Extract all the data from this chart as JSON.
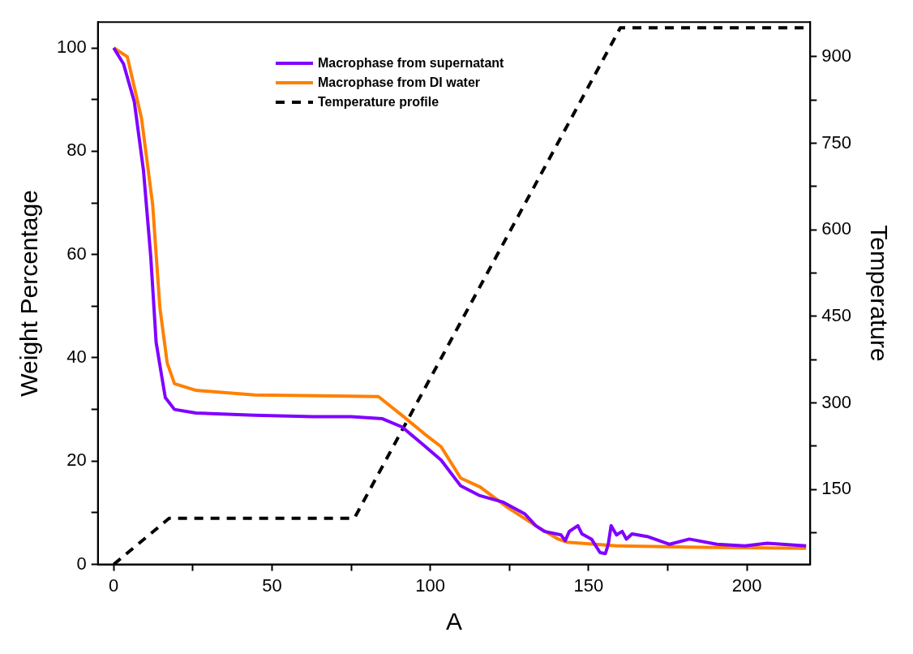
{
  "chart_data": {
    "type": "line",
    "xlabel": "A",
    "ylabel": "Weight Percentage",
    "y2label": "Temperature",
    "xlim": [
      -5,
      220
    ],
    "xticks": [
      0,
      {
        "value": 25,
        "label": null
      },
      50,
      {
        "value": 75,
        "label": null
      },
      100,
      {
        "value": 125,
        "label": null
      },
      150,
      {
        "value": 175,
        "label": null
      },
      200
    ],
    "ylim": [
      0,
      105
    ],
    "yticks": [
      0,
      {
        "value": 10,
        "label": null
      },
      20,
      {
        "value": 30,
        "label": null
      },
      40,
      {
        "value": 50,
        "label": null
      },
      60,
      {
        "value": 70,
        "label": null
      },
      80,
      {
        "value": 90,
        "label": null
      },
      100
    ],
    "y2lim": [
      20,
      960
    ],
    "y2ticks": [
      {
        "value": 75,
        "label": null
      },
      150,
      {
        "value": 225,
        "label": null
      },
      300,
      {
        "value": 375,
        "label": null
      },
      450,
      {
        "value": 525,
        "label": null
      },
      600,
      {
        "value": 675,
        "label": null
      },
      750,
      {
        "value": 825,
        "label": null
      },
      900
    ],
    "legend": "top",
    "series": [
      {
        "name": "Macrophase from supernatant",
        "color": "#8000ff",
        "x": [
          0,
          3.1,
          6.5,
          9.4,
          11.7,
          13.4,
          15.2,
          16.3,
          19.2,
          26,
          44.5,
          62.9,
          75,
          84.9,
          91.1,
          98.1,
          103.4,
          109.6,
          115.7,
          122.8,
          129.8,
          133.3,
          136,
          141.3,
          142.6,
          143.9,
          146.6,
          147.9,
          150.9,
          153.6,
          155.3,
          156.2,
          157.1,
          158.8,
          160.6,
          161.9,
          163.7,
          168.5,
          175.6,
          181.8,
          190.5,
          199.4,
          206.4,
          218.7
        ],
        "values": [
          100,
          96.9,
          89.6,
          76.3,
          59.6,
          43,
          36.3,
          32.3,
          30,
          29.3,
          28.9,
          28.6,
          28.6,
          28.2,
          26.6,
          23,
          20.2,
          15.2,
          13.3,
          12.1,
          9.8,
          7.5,
          6.4,
          5.7,
          4.6,
          6.4,
          7.5,
          5.9,
          4.9,
          2.3,
          2.1,
          3.9,
          7.5,
          5.7,
          6.4,
          4.9,
          5.9,
          5.4,
          3.9,
          4.9,
          3.9,
          3.6,
          4.1,
          3.6
        ]
      },
      {
        "name": "Macrophase from DI water",
        "color": "#ff8000",
        "x": [
          0,
          4.3,
          8.8,
          12.3,
          14.6,
          16.9,
          19.2,
          26,
          44.5,
          70,
          83.6,
          92,
          98.1,
          103.4,
          109.6,
          115.7,
          124.5,
          133.3,
          140.4,
          143.2,
          159,
          185.4,
          218.7
        ],
        "values": [
          100,
          98.3,
          86.3,
          69.7,
          49.6,
          39,
          35,
          33.7,
          32.8,
          32.6,
          32.5,
          28.4,
          25.3,
          22.8,
          16.7,
          15,
          11,
          7.5,
          4.9,
          4.3,
          3.6,
          3.3,
          3.1
        ]
      },
      {
        "name": "Temperature profile",
        "color": "#000000",
        "axis": "y2",
        "line_style": "dashed",
        "x": [
          0,
          17.5,
          76,
          160,
          220
        ],
        "values": [
          20,
          100,
          100,
          950,
          950
        ]
      }
    ]
  }
}
